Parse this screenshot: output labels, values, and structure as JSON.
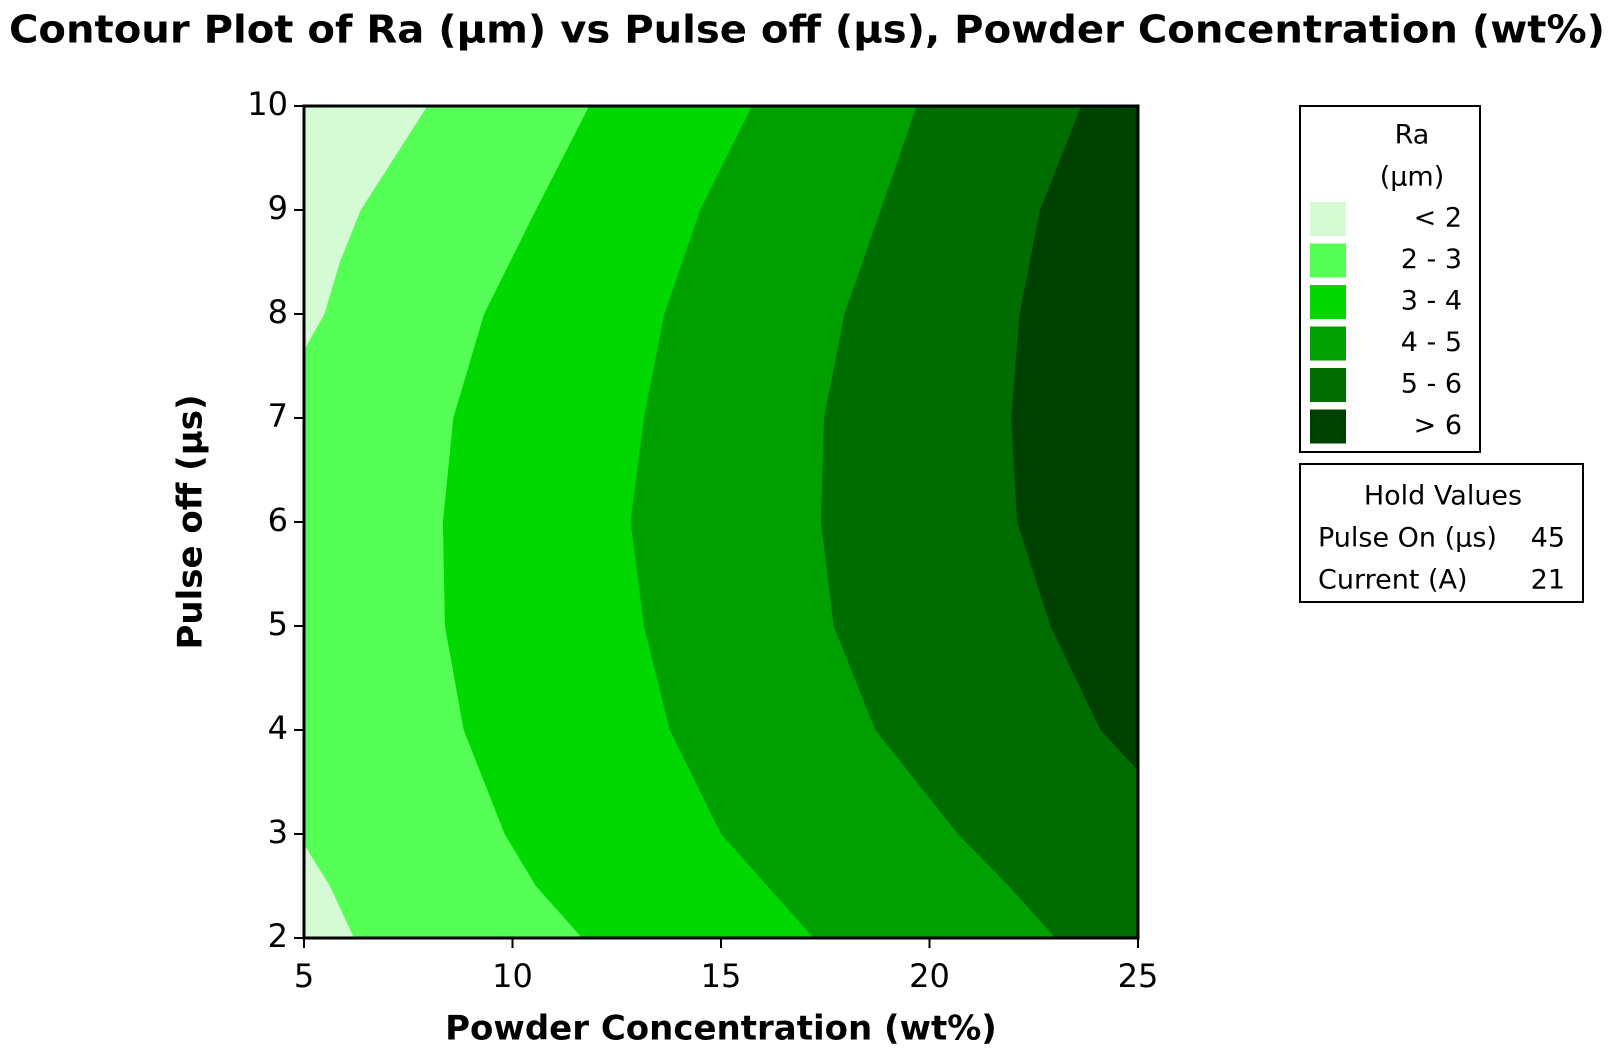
{
  "chart_data": {
    "type": "contour",
    "title": "Contour Plot of Ra (µm) vs Pulse off (µs), Powder Concentration (wt%)",
    "xlabel": "Powder Concentration (wt%)",
    "ylabel": "Pulse off (µs)",
    "xlim": [
      5,
      25
    ],
    "ylim": [
      2,
      10
    ],
    "xticks": [
      5,
      10,
      15,
      20,
      25
    ],
    "yticks": [
      2,
      3,
      4,
      5,
      6,
      7,
      8,
      9,
      10
    ],
    "legend_title": [
      "Ra",
      "(µm)"
    ],
    "legend": [
      {
        "label": "< 2",
        "color": "#d4fbd4"
      },
      {
        "label": "2 - 3",
        "color": "#55ff55"
      },
      {
        "label": "3 - 4",
        "color": "#00d800"
      },
      {
        "label": "4 - 5",
        "color": "#00a000"
      },
      {
        "label": "5 - 6",
        "color": "#006d00"
      },
      {
        "label": "> 6",
        "color": "#004000"
      }
    ],
    "contours": [
      {
        "x": [
          7.96,
          6.36,
          5.86,
          5.49,
          5,
          null,
          5,
          5.62,
          6.2
        ],
        "y": [
          10,
          9,
          8.5,
          8,
          7.65,
          null,
          2.9,
          2.5,
          2
        ]
      },
      {
        "x": [
          11.84,
          10.56,
          9.32,
          8.58,
          8.33,
          8.38,
          8.83,
          9.81,
          10.56,
          11.67
        ],
        "y": [
          10,
          9,
          8,
          7,
          6,
          5,
          4,
          3,
          2.5,
          2
        ]
      },
      {
        "x": [
          15.74,
          14.5,
          13.64,
          13.15,
          12.83,
          13.15,
          13.77,
          15,
          17.22
        ],
        "y": [
          10,
          9,
          8,
          7,
          6,
          5,
          4,
          3,
          2
        ]
      },
      {
        "x": [
          19.69,
          18.83,
          17.96,
          17.47,
          17.4,
          17.7,
          18.7,
          20.68,
          21.9,
          23.02
        ],
        "y": [
          10,
          9,
          8,
          7,
          6,
          5,
          4,
          3,
          2.5,
          2
        ]
      },
      {
        "x": [
          23.64,
          22.65,
          22.16,
          21.96,
          22.1,
          22.9,
          24.1,
          25
        ],
        "y": [
          10,
          9,
          8,
          7,
          6,
          5,
          4,
          3.61
        ]
      }
    ],
    "hold_values": {
      "title": "Hold Values",
      "rows": [
        [
          "Pulse On (µs)",
          45
        ],
        [
          "Current (A)",
          21
        ]
      ]
    }
  }
}
